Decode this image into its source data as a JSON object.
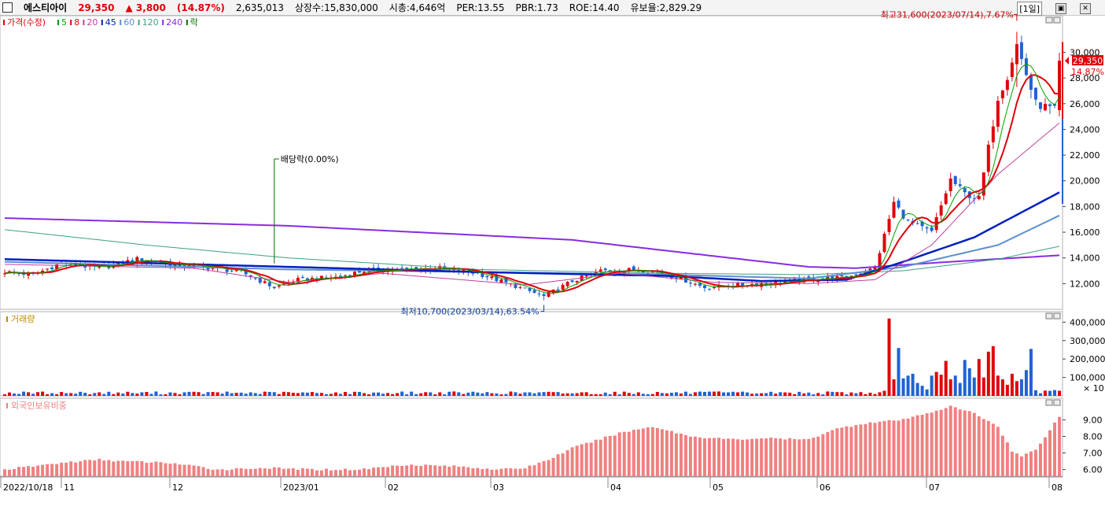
{
  "titlebar": {
    "stock_name": "에스티아이",
    "price": "29,350",
    "change": "▲ 3,800",
    "change_pct": "(14.87%)",
    "volume": "2,635,013",
    "listed_shares": "상장수:15,830,000",
    "market_cap": "시총:4,646억",
    "per": "PER:13.55",
    "pbr": "PBR:1.73",
    "roe": "ROE:14.40",
    "float_ratio": "유보율:2,829.29",
    "period": "[1일]"
  },
  "colors": {
    "up": "#e0000a",
    "down": "#1f63d0",
    "ma5": "#00a000",
    "ma8": "#e0000a",
    "ma20": "#c040a0",
    "ma45": "#0020c0",
    "ma60": "#5b8fd0",
    "ma120": "#40a080",
    "ma240": "#8a2be2",
    "foreign": "#f08080",
    "annotation_green": "#007000",
    "annotation_blue": "#1040a0"
  },
  "chart_data": [
    {
      "type": "candlestick",
      "title": "",
      "legend": [
        "가격(수정)",
        "5",
        "8",
        "20",
        "45",
        "60",
        "120",
        "240",
        "락"
      ],
      "y_ticks": [
        "12,000",
        "14,000",
        "16,000",
        "18,000",
        "20,000",
        "22,000",
        "24,000",
        "26,000",
        "28,000",
        "30,000"
      ],
      "ylim": [
        10000,
        32600
      ],
      "x_labels": [
        "2022/10/18",
        "11",
        "12",
        "2023/01",
        "02",
        "03",
        "04",
        "05",
        "06",
        "07",
        "08"
      ],
      "current_price_label": "29,350",
      "current_change_label": "14.87%",
      "annotations": {
        "high": "최고31,600(2023/07/14),7.67%",
        "low": "최저10,700(2023/03/14),63.54%",
        "dividend": "배당락(0.00%)"
      },
      "anchors": [
        {
          "d": 0,
          "c": 12900
        },
        {
          "d": 6,
          "c": 12700
        },
        {
          "d": 12,
          "c": 13600
        },
        {
          "d": 20,
          "c": 13200
        },
        {
          "d": 28,
          "c": 13900
        },
        {
          "d": 35,
          "c": 13500
        },
        {
          "d": 42,
          "c": 13300
        },
        {
          "d": 50,
          "c": 12900
        },
        {
          "d": 57,
          "c": 11700
        },
        {
          "d": 62,
          "c": 12300
        },
        {
          "d": 70,
          "c": 12500
        },
        {
          "d": 76,
          "c": 13000
        },
        {
          "d": 84,
          "c": 13100
        },
        {
          "d": 92,
          "c": 13200
        },
        {
          "d": 100,
          "c": 12800
        },
        {
          "d": 108,
          "c": 11800
        },
        {
          "d": 114,
          "c": 11000
        },
        {
          "d": 120,
          "c": 12200
        },
        {
          "d": 126,
          "c": 13000
        },
        {
          "d": 135,
          "c": 13100
        },
        {
          "d": 142,
          "c": 12500
        },
        {
          "d": 148,
          "c": 11700
        },
        {
          "d": 156,
          "c": 11900
        },
        {
          "d": 164,
          "c": 12100
        },
        {
          "d": 172,
          "c": 12400
        },
        {
          "d": 178,
          "c": 12500
        },
        {
          "d": 184,
          "c": 13200
        },
        {
          "d": 188,
          "c": 18300
        },
        {
          "d": 191,
          "c": 16800
        },
        {
          "d": 196,
          "c": 16000
        },
        {
          "d": 200,
          "c": 20100
        },
        {
          "d": 203,
          "c": 19000
        },
        {
          "d": 206,
          "c": 18600
        },
        {
          "d": 210,
          "c": 26500
        },
        {
          "d": 212,
          "c": 28200
        },
        {
          "d": 214,
          "c": 30600
        },
        {
          "d": 218,
          "c": 26000
        },
        {
          "d": 222,
          "c": 25500
        },
        {
          "d": 223,
          "c": 29350
        }
      ],
      "extremes": [
        {
          "d": 0,
          "h": 13100,
          "l": 12500
        },
        {
          "d": 114,
          "h": 11300,
          "l": 10700
        },
        {
          "d": 214,
          "h": 31600,
          "l": 27300
        }
      ],
      "moving_averages": [
        {
          "name": "240",
          "points": [
            [
              0,
              17100
            ],
            [
              60,
              16500
            ],
            [
              120,
              15400
            ],
            [
              170,
              13300
            ],
            [
              180,
              13200
            ],
            [
              200,
              13700
            ],
            [
              223,
              14200
            ]
          ]
        },
        {
          "name": "120",
          "points": [
            [
              0,
              16200
            ],
            [
              30,
              15000
            ],
            [
              60,
              14000
            ],
            [
              100,
              13100
            ],
            [
              140,
              12800
            ],
            [
              170,
              12700
            ],
            [
              190,
              13000
            ],
            [
              210,
              13900
            ],
            [
              223,
              14900
            ]
          ]
        },
        {
          "name": "60",
          "points": [
            [
              0,
              13700
            ],
            [
              60,
              13100
            ],
            [
              100,
              12900
            ],
            [
              140,
              12700
            ],
            [
              170,
              12400
            ],
            [
              190,
              13300
            ],
            [
              210,
              15000
            ],
            [
              223,
              17300
            ]
          ]
        },
        {
          "name": "45",
          "points": [
            [
              0,
              13900
            ],
            [
              40,
              13500
            ],
            [
              100,
              12900
            ],
            [
              140,
              12600
            ],
            [
              160,
              12200
            ],
            [
              178,
              12300
            ],
            [
              190,
              13700
            ],
            [
              205,
              15600
            ],
            [
              223,
              19100
            ]
          ]
        },
        {
          "name": "20",
          "points": [
            [
              0,
              13500
            ],
            [
              40,
              13200
            ],
            [
              60,
              12100
            ],
            [
              80,
              12800
            ],
            [
              110,
              11900
            ],
            [
              130,
              12800
            ],
            [
              150,
              12100
            ],
            [
              170,
              12000
            ],
            [
              184,
              12300
            ],
            [
              196,
              15000
            ],
            [
              210,
              20500
            ],
            [
              223,
              24500
            ]
          ]
        }
      ]
    },
    {
      "type": "bar",
      "title": "거래량",
      "y_ticks": [
        "100,000",
        "200,000",
        "300,000",
        "400,000"
      ],
      "unit_label": "× 10",
      "ylim": [
        0,
        440000
      ],
      "volumes": [
        [
          187,
          420000
        ],
        [
          188,
          90000
        ],
        [
          189,
          260000
        ],
        [
          190,
          95000
        ],
        [
          191,
          110000
        ],
        [
          192,
          120000
        ],
        [
          193,
          70000
        ],
        [
          194,
          55000
        ],
        [
          195,
          35000
        ],
        [
          196,
          110000
        ],
        [
          197,
          130000
        ],
        [
          198,
          115000
        ],
        [
          199,
          190000
        ],
        [
          200,
          90000
        ],
        [
          201,
          110000
        ],
        [
          202,
          70000
        ],
        [
          203,
          195000
        ],
        [
          204,
          150000
        ],
        [
          205,
          100000
        ],
        [
          206,
          200000
        ],
        [
          207,
          100000
        ],
        [
          208,
          240000
        ],
        [
          209,
          270000
        ],
        [
          210,
          110000
        ],
        [
          211,
          90000
        ],
        [
          212,
          60000
        ],
        [
          213,
          120000
        ],
        [
          214,
          80000
        ],
        [
          215,
          90000
        ],
        [
          216,
          140000
        ],
        [
          217,
          255000
        ]
      ]
    },
    {
      "type": "bar",
      "title": "외국인보유비중",
      "y_ticks": [
        "6.00",
        "7.00",
        "8.00",
        "9.00"
      ],
      "ylim": [
        5.6,
        10.3
      ],
      "foreign_ratio_anchors": [
        [
          0,
          6.0
        ],
        [
          12,
          6.4
        ],
        [
          20,
          6.6
        ],
        [
          25,
          6.5
        ],
        [
          35,
          6.4
        ],
        [
          45,
          6.0
        ],
        [
          55,
          6.1
        ],
        [
          65,
          6.0
        ],
        [
          75,
          6.0
        ],
        [
          85,
          6.3
        ],
        [
          95,
          6.2
        ],
        [
          105,
          6.0
        ],
        [
          110,
          6.1
        ],
        [
          115,
          6.6
        ],
        [
          120,
          7.3
        ],
        [
          130,
          8.2
        ],
        [
          137,
          8.6
        ],
        [
          145,
          8.0
        ],
        [
          155,
          7.8
        ],
        [
          160,
          7.9
        ],
        [
          170,
          7.8
        ],
        [
          175,
          8.4
        ],
        [
          182,
          8.8
        ],
        [
          190,
          9.0
        ],
        [
          195,
          9.4
        ],
        [
          200,
          9.8
        ],
        [
          205,
          9.4
        ],
        [
          210,
          8.6
        ],
        [
          213,
          7.1
        ],
        [
          215,
          6.8
        ],
        [
          218,
          7.2
        ],
        [
          221,
          8.4
        ],
        [
          223,
          9.2
        ]
      ]
    }
  ]
}
